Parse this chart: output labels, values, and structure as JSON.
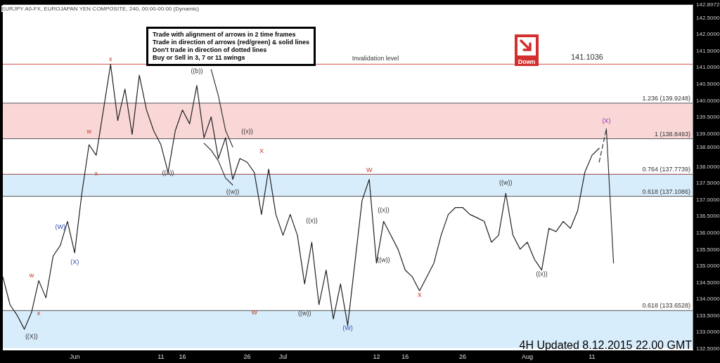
{
  "chart_data": {
    "type": "line",
    "annotations": [
      "Trade with alignment of arrows in 2 time frames\nTrade in direction of arrows (red/green) & solid lines\nDon't trade in direction of dotted lines\nBuy or Sell in 3, 7 or 11 swings",
      "EURJPY A0-FX, EUROJAPAN YEN COMPOSITE, 240, 00:00-00:00 (Dynamic)",
      "Down",
      "4H Updated 8.12.2015 22.00 GMT",
      "141.1036",
      "x",
      "w",
      "x",
      "w",
      "x",
      "((X))",
      "(W)",
      "(X)",
      "((a))",
      "((b))",
      "((x))",
      "((w))",
      "X",
      "W",
      "((x))",
      "((w))",
      "(W)",
      "W",
      "((x))",
      "((w))",
      "X",
      "((w))",
      "((x))",
      "(X)"
    ],
    "categories": [
      null,
      null,
      null,
      null,
      null,
      null,
      null,
      null,
      null,
      null,
      "Jun",
      null,
      null,
      null,
      null,
      null,
      null,
      null,
      null,
      null,
      null,
      null,
      "11",
      null,
      null,
      "16",
      null,
      null,
      null,
      null,
      null,
      null,
      null,
      null,
      "26",
      null,
      null,
      null,
      null,
      "Jul",
      null,
      null,
      null,
      null,
      null,
      null,
      null,
      null,
      null,
      null,
      null,
      null,
      "12",
      null,
      null,
      null,
      "16",
      null,
      null,
      null,
      null,
      null,
      null,
      null,
      "26",
      null,
      null,
      null,
      null,
      null,
      null,
      null,
      null,
      "Aug",
      null,
      null,
      null,
      null,
      null,
      null,
      null,
      null,
      "11",
      null,
      null,
      null,
      null,
      null,
      null,
      null,
      null,
      null,
      null,
      null,
      null,
      null,
      null
    ],
    "ylim": [
      132.45,
      142.9
    ],
    "yticks": [
      {
        "value": 132.5,
        "label": "132.5000"
      },
      {
        "value": 133,
        "label": "133.0000"
      },
      {
        "value": 133.5,
        "label": "133.5000"
      },
      {
        "value": 134,
        "label": "134.0000"
      },
      {
        "value": 134.5,
        "label": "134.5000"
      },
      {
        "value": 135,
        "label": "135.0000"
      },
      {
        "value": 135.5,
        "label": "135.5000"
      },
      {
        "value": 136,
        "label": "136.0000"
      },
      {
        "value": 136.5,
        "label": "136.5000"
      },
      {
        "value": 137,
        "label": "137.0000"
      },
      {
        "value": 137.5,
        "label": "137.5000"
      },
      {
        "value": 138,
        "label": "138.0000"
      },
      {
        "value": 138.6,
        "label": "138.6000"
      },
      {
        "value": 139,
        "label": "139.0000"
      },
      {
        "value": 139.5,
        "label": "139.5000"
      },
      {
        "value": 140,
        "label": "140.0000"
      },
      {
        "value": 140.5,
        "label": "140.5000"
      },
      {
        "value": 141,
        "label": "141.0000"
      },
      {
        "value": 141.5,
        "label": "141.5000"
      },
      {
        "value": 142,
        "label": "142.0000"
      },
      {
        "value": 142.5,
        "label": "142.5000"
      },
      {
        "value": 142.8972,
        "label": "142.8972"
      }
    ],
    "bands": [
      {
        "axis": "y",
        "from": 138.8493,
        "to": 139.9248,
        "color": "#f4a6a6"
      },
      {
        "axis": "y",
        "from": 137.1086,
        "to": 137.7739,
        "color": "#a8d8f8"
      },
      {
        "axis": "y",
        "from": 132.52,
        "to": 133.6528,
        "color": "#a8d8f8"
      }
    ],
    "ref_lines": [
      {
        "axis": "y",
        "value": 141.1036,
        "label": "Invalidation level",
        "color": "#d9534f"
      },
      {
        "axis": "y",
        "value": 139.9248,
        "label": "1.236 (139.9248)",
        "color": "#555555"
      },
      {
        "axis": "y",
        "value": 138.8493,
        "label": "1 (138.8493)",
        "color": "#555555"
      },
      {
        "axis": "y",
        "value": 137.7739,
        "label": "0.764 (137.7739)",
        "color": "#8b3a3a"
      },
      {
        "axis": "y",
        "value": 137.1086,
        "label": "0.618 (137.1086)",
        "color": "#555555"
      },
      {
        "axis": "y",
        "value": 133.6528,
        "label": "0.618 (133.6528)",
        "color": "#555555"
      }
    ],
    "series": [
      {
        "color": "#222222",
        "values": [
          134.67,
          133.83,
          133.51,
          133.09,
          133.6,
          134.56,
          134.04,
          135.3,
          135.62,
          136.35,
          135.4,
          137.2,
          138.67,
          138.35,
          139.72,
          141.1,
          139.4,
          140.35,
          138.98,
          140.77,
          139.72,
          139.09,
          138.67,
          137.83,
          139.09,
          139.72,
          139.3,
          140.46,
          138.88,
          139.51,
          138.25,
          138.88,
          137.62,
          138.25,
          138.14,
          137.83,
          136.56,
          137.93,
          136.56,
          135.93,
          136.56,
          135.93,
          134.46,
          135.72,
          133.83,
          134.88,
          133.4,
          134.46,
          133.2,
          135.09,
          136.98,
          137.62,
          135.09,
          136.35,
          135.93,
          135.51,
          134.88,
          134.67,
          134.25,
          134.67,
          135.09,
          135.93,
          136.56,
          136.77,
          136.77,
          136.56,
          136.46,
          136.35,
          135.72,
          135.93,
          137.2,
          135.93,
          135.51,
          135.72,
          135.2,
          134.88,
          136.14,
          136.04,
          136.35,
          136.14,
          136.67,
          137.83,
          138.35,
          138.56,
          null,
          null,
          null,
          null,
          null,
          null,
          null,
          null,
          null,
          null,
          null,
          null,
          null
        ]
      },
      {
        "color": "#333333",
        "line_style": "dashed",
        "values": [
          null,
          null,
          null,
          null,
          null,
          null,
          null,
          null,
          null,
          null,
          null,
          null,
          null,
          null,
          null,
          null,
          null,
          null,
          null,
          null,
          null,
          null,
          null,
          null,
          null,
          null,
          null,
          null,
          null,
          null,
          null,
          null,
          null,
          null,
          null,
          null,
          null,
          null,
          null,
          null,
          null,
          null,
          null,
          null,
          null,
          null,
          null,
          null,
          null,
          null,
          null,
          null,
          null,
          null,
          null,
          null,
          null,
          null,
          null,
          null,
          null,
          null,
          null,
          null,
          null,
          null,
          null,
          null,
          null,
          null,
          null,
          null,
          null,
          null,
          null,
          null,
          null,
          null,
          null,
          null,
          null,
          null,
          null,
          138.14,
          139.15,
          null,
          null,
          null,
          null,
          null,
          null,
          null,
          null,
          null,
          null,
          null,
          null
        ]
      },
      {
        "color": "#333333",
        "values": [
          null,
          null,
          null,
          null,
          null,
          null,
          null,
          null,
          null,
          null,
          null,
          null,
          null,
          null,
          null,
          null,
          null,
          null,
          null,
          null,
          null,
          null,
          null,
          null,
          null,
          null,
          null,
          null,
          null,
          null,
          null,
          null,
          null,
          null,
          null,
          null,
          null,
          null,
          null,
          null,
          null,
          null,
          null,
          null,
          null,
          null,
          null,
          null,
          null,
          null,
          null,
          null,
          null,
          null,
          null,
          null,
          null,
          null,
          null,
          null,
          null,
          null,
          null,
          null,
          null,
          null,
          null,
          null,
          null,
          null,
          null,
          null,
          null,
          null,
          null,
          null,
          null,
          null,
          null,
          null,
          null,
          null,
          null,
          null,
          139.15,
          135.09,
          null,
          null,
          null,
          null,
          null,
          null,
          null,
          null,
          null,
          null,
          null
        ]
      },
      {
        "color": "#333333",
        "values": [
          null,
          null,
          null,
          null,
          null,
          null,
          null,
          null,
          null,
          null,
          null,
          null,
          null,
          null,
          null,
          null,
          null,
          null,
          null,
          null,
          null,
          null,
          null,
          null,
          null,
          null,
          null,
          null,
          138.71,
          138.5,
          138.18,
          137.66,
          137.45,
          null,
          null,
          null,
          null,
          null,
          null,
          null,
          null,
          null,
          null,
          null,
          null,
          null,
          null,
          null,
          null,
          null,
          null,
          null,
          null,
          null,
          null,
          null,
          null,
          null,
          null,
          null,
          null,
          null,
          null,
          null,
          null,
          null,
          null,
          null,
          null,
          null,
          null,
          null,
          null,
          null,
          null,
          null,
          null,
          null,
          null,
          null,
          null,
          null,
          null,
          null,
          null,
          null,
          null,
          null,
          null,
          null,
          null,
          null,
          null,
          null,
          null,
          null,
          null
        ]
      },
      {
        "color": "#333333",
        "values": [
          null,
          null,
          null,
          null,
          null,
          null,
          null,
          null,
          null,
          null,
          null,
          null,
          null,
          null,
          null,
          null,
          null,
          null,
          null,
          null,
          null,
          null,
          null,
          null,
          null,
          null,
          null,
          null,
          null,
          140.94,
          140.15,
          139.1,
          138.6,
          null,
          null,
          null,
          null,
          null,
          null,
          null,
          null,
          null,
          null,
          null,
          null,
          null,
          null,
          null,
          null,
          null,
          null,
          null,
          null,
          null,
          null,
          null,
          null,
          null,
          null,
          null,
          null,
          null,
          null,
          null,
          null,
          null,
          null,
          null,
          null,
          null,
          null,
          null,
          null,
          null,
          null,
          null,
          null,
          null,
          null,
          null,
          null,
          null,
          null,
          null,
          null,
          null,
          null,
          null,
          null,
          null,
          null,
          null,
          null,
          null,
          null,
          null,
          null
        ]
      }
    ],
    "grid": false,
    "legend": false,
    "marker": "none",
    "line_style": "solid"
  }
}
